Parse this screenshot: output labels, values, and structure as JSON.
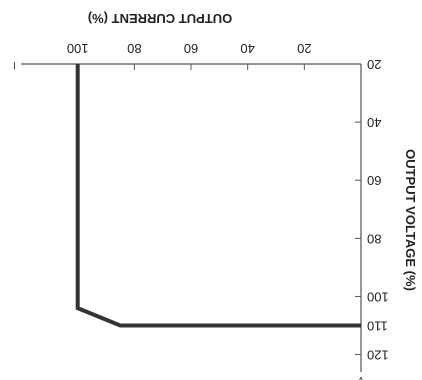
{
  "chart_data": {
    "type": "line",
    "xlabel": "OUTPUT CURRENT (%)",
    "ylabel": "OUTPUT VOLTAGE (%)",
    "x_ticks": [
      20,
      40,
      60,
      80,
      100
    ],
    "y_ticks": [
      20,
      40,
      60,
      80,
      100,
      110,
      120
    ],
    "xlim": [
      0,
      120
    ],
    "ylim": [
      20,
      126
    ],
    "x_axis_end_label": "I",
    "y_axis_end_label": "V",
    "grid": false,
    "series": [
      {
        "color": "#333333",
        "x": [
          0,
          85,
          100,
          100
        ],
        "y": [
          110,
          110,
          104,
          20
        ]
      }
    ]
  }
}
